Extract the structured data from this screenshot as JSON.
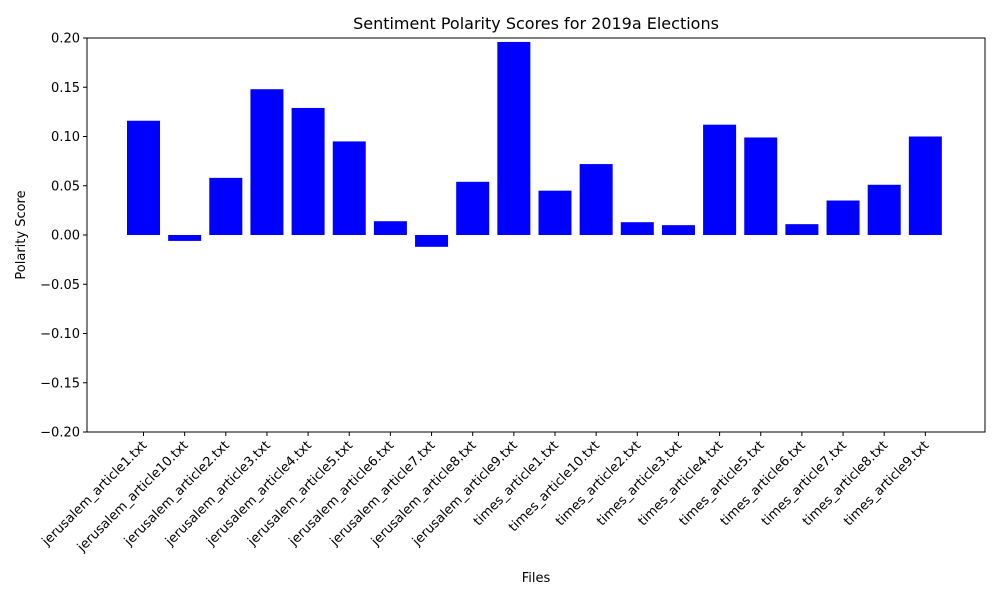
{
  "chart_data": {
    "type": "bar",
    "title": "Sentiment Polarity Scores for 2019a Elections",
    "xlabel": "Files",
    "ylabel": "Polarity Score",
    "ylim": [
      -0.2,
      0.2
    ],
    "yticks": [
      -0.2,
      -0.15,
      -0.1,
      -0.05,
      0.0,
      0.05,
      0.1,
      0.15,
      0.2
    ],
    "ytick_labels": [
      "−0.20",
      "−0.15",
      "−0.10",
      "−0.05",
      "0.00",
      "0.05",
      "0.10",
      "0.15",
      "0.20"
    ],
    "grid": false,
    "bar_color": "#0000ff",
    "categories": [
      "jerusalem_article1.txt",
      "jerusalem_article10.txt",
      "jerusalem_article2.txt",
      "jerusalem_article3.txt",
      "jerusalem_article4.txt",
      "jerusalem_article5.txt",
      "jerusalem_article6.txt",
      "jerusalem_article7.txt",
      "jerusalem_article8.txt",
      "jerusalem_article9.txt",
      "times_article1.txt",
      "times_article10.txt",
      "times_article2.txt",
      "times_article3.txt",
      "times_article4.txt",
      "times_article5.txt",
      "times_article6.txt",
      "times_article7.txt",
      "times_article8.txt",
      "times_article9.txt"
    ],
    "values": [
      0.116,
      -0.006,
      0.058,
      0.148,
      0.129,
      0.095,
      0.014,
      -0.012,
      0.054,
      0.196,
      0.045,
      0.072,
      0.013,
      0.01,
      0.112,
      0.099,
      0.011,
      0.035,
      0.051,
      0.1
    ]
  }
}
